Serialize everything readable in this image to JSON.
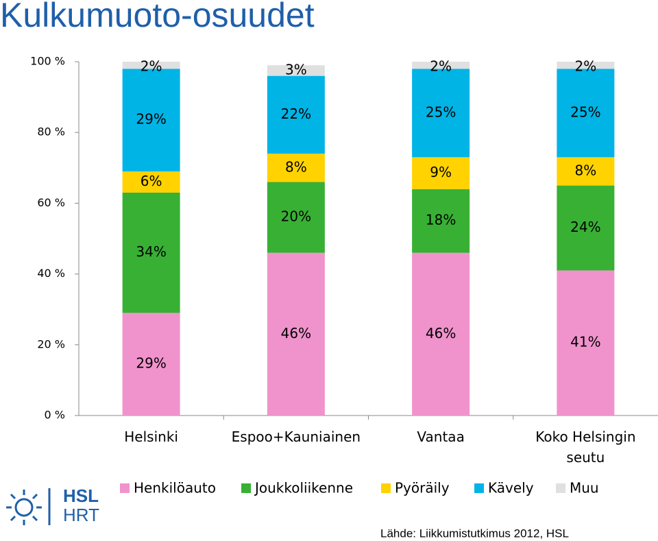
{
  "chart_data": {
    "type": "stacked_bar",
    "title": "Kulkumuoto-osuudet",
    "categories": [
      "Helsinki",
      "Espoo+Kauniainen",
      "Vantaa",
      "Koko Helsingin seutu"
    ],
    "series": [
      {
        "name": "Henkilöauto",
        "color": "#f093cc",
        "values": [
          29,
          46,
          46,
          41
        ],
        "value_labels": [
          "29%",
          "46%",
          "46%",
          "41%"
        ]
      },
      {
        "name": "Joukkoliikenne",
        "color": "#38b034",
        "values": [
          34,
          20,
          18,
          24
        ],
        "value_labels": [
          "34%",
          "20%",
          "18%",
          "24%"
        ]
      },
      {
        "name": "Pyöräily",
        "color": "#ffd200",
        "values": [
          6,
          8,
          9,
          8
        ],
        "value_labels": [
          "6%",
          "8%",
          "9%",
          "8%"
        ]
      },
      {
        "name": "Kävely",
        "color": "#00b4e6",
        "values": [
          29,
          22,
          25,
          25
        ],
        "value_labels": [
          "29%",
          "22%",
          "25%",
          "25%"
        ]
      },
      {
        "name": "Muu",
        "color": "#e0e0e0",
        "values": [
          2,
          3,
          2,
          2
        ],
        "value_labels": [
          "2%",
          "3%",
          "2%",
          "2%"
        ]
      }
    ],
    "ylim": [
      0,
      100
    ],
    "yticks": [
      {
        "value": 0,
        "label": "0 %"
      },
      {
        "value": 20,
        "label": "20 %"
      },
      {
        "value": 40,
        "label": "40 %"
      },
      {
        "value": 60,
        "label": "60 %"
      },
      {
        "value": 80,
        "label": "80 %"
      },
      {
        "value": 100,
        "label": "100 %"
      }
    ],
    "source": "Lähde: Liikkumistutkimus 2012, HSL",
    "logo": [
      "HSL",
      "HRT"
    ]
  }
}
